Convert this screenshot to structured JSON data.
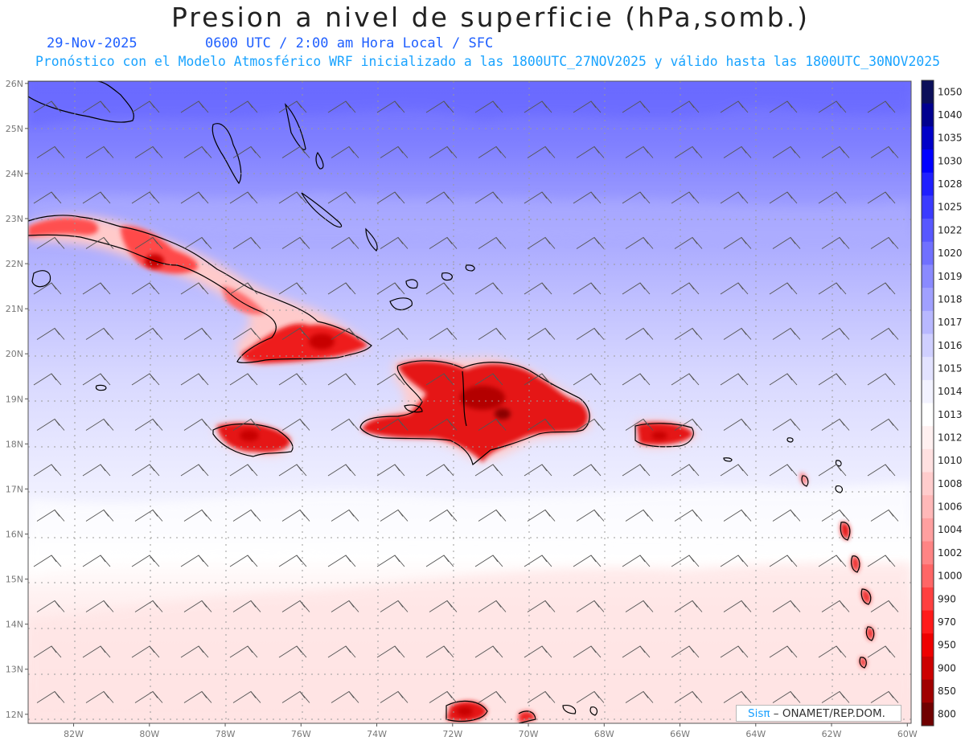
{
  "header": {
    "title": "Presion a nivel de superficie (hPa,somb.)",
    "date": "29-Nov-2025",
    "timeline": "0600 UTC / 2:00 am Hora Local / SFC",
    "subtitle": "Pronóstico con el Modelo Atmosférico WRF inicializado a las 1800UTC_27NOV2025 y válido hasta las  1800UTC_30NOV2025"
  },
  "map": {
    "lat_labels": [
      "26N",
      "25N",
      "24N",
      "23N",
      "22N",
      "21N",
      "20N",
      "19N",
      "18N",
      "17N",
      "16N",
      "15N",
      "14N",
      "13N",
      "12N"
    ],
    "lat_values": [
      26,
      25,
      24,
      23,
      22,
      21,
      20,
      19,
      18,
      17,
      16,
      15,
      14,
      13,
      12
    ],
    "lon_labels": [
      "82W",
      "80W",
      "78W",
      "76W",
      "74W",
      "72W",
      "70W",
      "68W",
      "66W",
      "64W",
      "62W",
      "60W"
    ],
    "lon_values": [
      -82,
      -80,
      -78,
      -76,
      -74,
      -72,
      -70,
      -68,
      -66,
      -64,
      -62,
      -60
    ],
    "lon_range": [
      -83.2,
      -59.9
    ],
    "lat_range": [
      11.8,
      26.05
    ],
    "wind_barbs": "trade winds from the east-northeast"
  },
  "colorbar": {
    "labels": [
      "1050",
      "1040",
      "1035",
      "1030",
      "1028",
      "1025",
      "1022",
      "1020",
      "1019",
      "1018",
      "1017",
      "1016",
      "1015",
      "1014",
      "1013",
      "1012",
      "1010",
      "1008",
      "1006",
      "1004",
      "1002",
      "1000",
      "990",
      "970",
      "950",
      "900",
      "850",
      "800"
    ],
    "colors": [
      "#0b0f5a",
      "#00008f",
      "#0000c8",
      "#0000ff",
      "#1f1fff",
      "#3b3bff",
      "#5858ff",
      "#7070ff",
      "#8a8aff",
      "#a0a0ff",
      "#b8b8ff",
      "#cfcfff",
      "#e2e2ff",
      "#f2f2ff",
      "#ffffff",
      "#fff0f0",
      "#ffe0e0",
      "#ffcccc",
      "#ffb8b8",
      "#ff9f9f",
      "#ff8484",
      "#ff6666",
      "#ff4040",
      "#ff1a1a",
      "#ee0000",
      "#cc0000",
      "#a00000",
      "#700000"
    ]
  },
  "credit": {
    "logo": "Sisπ",
    "org": "– ONAMET/REP.DOM."
  }
}
